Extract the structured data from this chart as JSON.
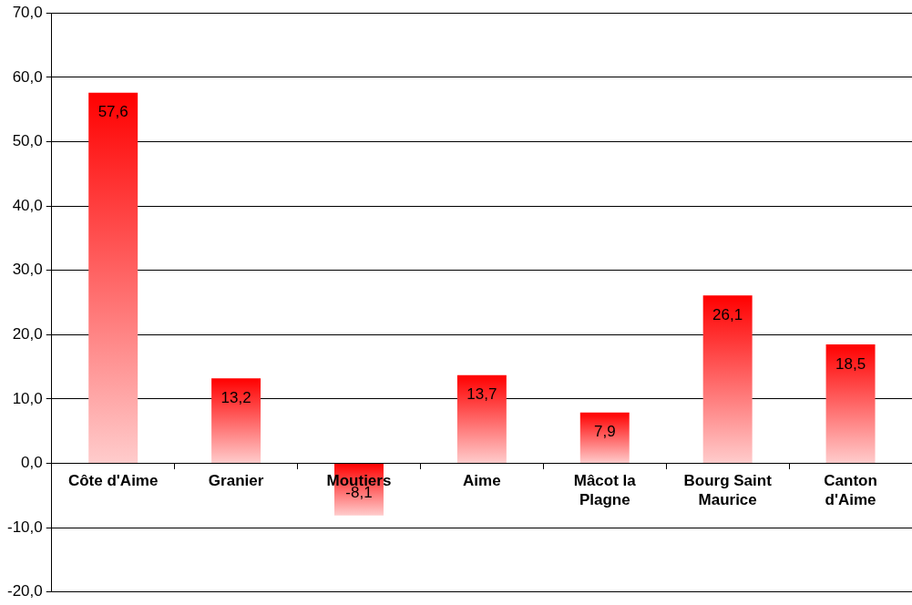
{
  "chart_data": {
    "type": "bar",
    "categories": [
      "Côte d'Aime",
      "Granier",
      "Moutiers",
      "Aime",
      "Mâcot la Plagne",
      "Bourg Saint Maurice",
      "Canton d'Aime"
    ],
    "values": [
      57.6,
      13.2,
      -8.1,
      13.7,
      7.9,
      26.1,
      18.5
    ],
    "color": "#ff0000",
    "ylim": [
      -20,
      70
    ],
    "yticks": [
      {
        "value": -20,
        "label": "-20,0"
      },
      {
        "value": -10,
        "label": "-10,0"
      },
      {
        "value": 0,
        "label": "0,0"
      },
      {
        "value": 10,
        "label": "10,0"
      },
      {
        "value": 20,
        "label": "20,0"
      },
      {
        "value": 30,
        "label": "30,0"
      },
      {
        "value": 40,
        "label": "40,0"
      },
      {
        "value": 50,
        "label": "50,0"
      },
      {
        "value": 60,
        "label": "60,0"
      },
      {
        "value": 70,
        "label": "70,0"
      }
    ],
    "grid": "y",
    "value_labels": [
      "57,6",
      "13,2",
      "-8,1",
      "13,7",
      "7,9",
      "26,1",
      "18,5"
    ]
  }
}
